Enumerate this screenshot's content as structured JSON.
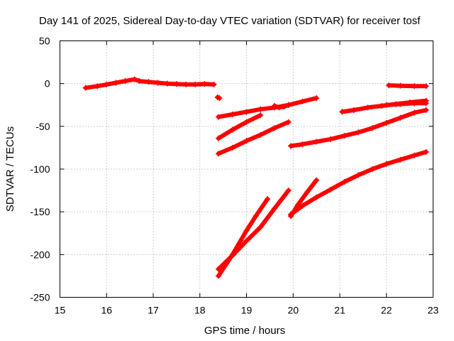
{
  "chart_data": {
    "type": "scatter",
    "title": "Day 141 of 2025, Sidereal Day-to-day VTEC variation (SDTVAR) for receiver tosf",
    "xlabel": "GPS time / hours",
    "ylabel": "SDTVAR / TECUs",
    "xlim": [
      15,
      23
    ],
    "ylim": [
      -250,
      50
    ],
    "xticks": [
      "15",
      "16",
      "17",
      "18",
      "19",
      "20",
      "21",
      "22",
      "23"
    ],
    "yticks": [
      "50",
      "0",
      "-50",
      "-100",
      "-150",
      "-200",
      "-250"
    ],
    "grid": true,
    "legend": "none",
    "marker_color": "#ff0000",
    "marker": "plus",
    "series": [
      {
        "x": [
          15.55,
          15.8,
          16.0,
          16.2,
          16.4,
          16.6,
          16.7,
          16.9,
          17.1,
          17.3,
          17.5,
          17.7,
          17.9,
          18.1,
          18.3
        ],
        "y": [
          -5,
          -3,
          -1,
          1,
          3,
          5,
          3,
          2,
          1,
          0,
          -0.5,
          -1,
          -1,
          -0.5,
          -1
        ]
      },
      {
        "x": [
          18.38,
          18.42
        ],
        "y": [
          -16,
          -17
        ]
      },
      {
        "x": [
          18.4,
          18.7,
          19.0,
          19.3,
          19.6,
          19.9,
          20.2,
          20.5
        ],
        "y": [
          -39,
          -36,
          -33,
          -30,
          -28,
          -25,
          -21,
          -17
        ]
      },
      {
        "x": [
          19.6,
          19.7,
          19.8,
          19.9
        ],
        "y": [
          -26,
          -28,
          -27,
          -25
        ]
      },
      {
        "x": [
          18.4,
          18.7,
          19.0,
          19.3
        ],
        "y": [
          -64,
          -54,
          -45,
          -37
        ]
      },
      {
        "x": [
          18.4,
          18.7,
          19.0,
          19.3,
          19.6,
          19.9
        ],
        "y": [
          -82,
          -75,
          -67,
          -60,
          -52,
          -45
        ]
      },
      {
        "x": [
          19.95,
          20.2,
          20.5,
          20.8,
          21.1,
          21.4,
          21.7,
          22.0,
          22.3,
          22.6,
          22.85
        ],
        "y": [
          -73,
          -71,
          -68,
          -65,
          -61,
          -57,
          -52,
          -46,
          -40,
          -34,
          -31
        ]
      },
      {
        "x": [
          21.05,
          21.3,
          21.6,
          21.9,
          22.2,
          22.5,
          22.85
        ],
        "y": [
          -33,
          -31,
          -28,
          -26,
          -24,
          -22,
          -20
        ]
      },
      {
        "x": [
          22.0,
          22.3,
          22.6,
          22.85
        ],
        "y": [
          -25,
          -24,
          -23,
          -23
        ]
      },
      {
        "x": [
          22.05,
          22.3,
          22.6,
          22.85
        ],
        "y": [
          -2,
          -2.5,
          -3,
          -3
        ]
      },
      {
        "x": [
          18.4,
          18.7,
          19.0,
          19.2,
          19.45
        ],
        "y": [
          -225,
          -200,
          -172,
          -155,
          -135
        ]
      },
      {
        "x": [
          18.4,
          18.7,
          19.0,
          19.3,
          19.6,
          19.9
        ],
        "y": [
          -217,
          -201,
          -184,
          -168,
          -146,
          -125
        ]
      },
      {
        "x": [
          19.95,
          20.1,
          20.3,
          20.5
        ],
        "y": [
          -155,
          -142,
          -127,
          -113
        ]
      },
      {
        "x": [
          19.95,
          20.2,
          20.5,
          20.8,
          21.1,
          21.4,
          21.7,
          22.0,
          22.3,
          22.6,
          22.85
        ],
        "y": [
          -153,
          -143,
          -133,
          -124,
          -115,
          -107,
          -100,
          -94,
          -89,
          -84,
          -80
        ]
      }
    ]
  }
}
